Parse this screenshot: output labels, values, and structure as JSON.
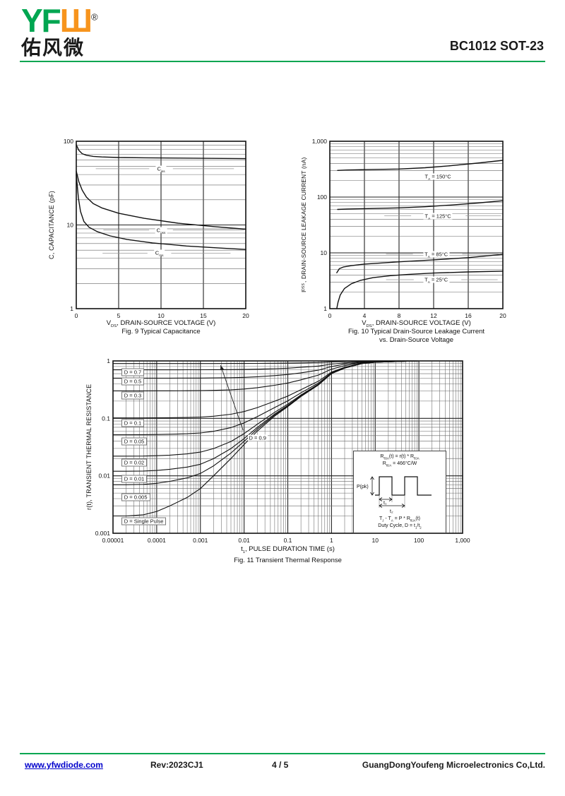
{
  "header": {
    "logo_green": "YF",
    "logo_orange": "Ш",
    "logo_registered": "®",
    "logo_cn": "佑风微",
    "part_number": "BC1012  SOT-23"
  },
  "footer": {
    "website": "www.yfwdiode.com",
    "revision": "Rev:2023CJ1",
    "page": "4 / 5",
    "company": "GuangDongYoufeng Microelectronics Co,Ltd."
  },
  "colors": {
    "brand_green": "#00A651",
    "logo_orange": "#F7941D",
    "link_blue": "#0000CC",
    "curve_black": "#111111"
  },
  "chart_data": [
    {
      "id": "fig9",
      "type": "line",
      "title_lines": [
        "Fig. 9 Typical Capacitance"
      ],
      "xlabel": "V~DS~, DRAIN-SOURCE VOLTAGE (V)",
      "ylabel": "C, CAPACITANCE (pF)",
      "x": {
        "scale": "linear",
        "min": 0,
        "max": 20,
        "ticks": [
          [
            0,
            "0"
          ],
          [
            5,
            "5"
          ],
          [
            10,
            "10"
          ],
          [
            15,
            "15"
          ],
          [
            20,
            "20"
          ]
        ]
      },
      "y": {
        "scale": "log",
        "min": 1,
        "max": 100,
        "ticks": [
          [
            100,
            "100"
          ],
          [
            10,
            "10"
          ],
          [
            1,
            "1"
          ]
        ]
      },
      "series": [
        {
          "name": "Ciss",
          "x": [
            0,
            0.3,
            0.7,
            1.2,
            2,
            3,
            5,
            8,
            12,
            16,
            20
          ],
          "y": [
            91,
            78,
            71,
            68,
            66,
            65,
            64,
            63.5,
            63,
            62.5,
            62
          ]
        },
        {
          "name": "Coss",
          "x": [
            0,
            0.3,
            0.7,
            1.2,
            2,
            3,
            5,
            8,
            12,
            16,
            20
          ],
          "y": [
            44,
            33,
            26,
            21.5,
            18,
            16,
            13.8,
            12,
            10.5,
            9.6,
            8.9
          ]
        },
        {
          "name": "Crss",
          "x": [
            0,
            0.25,
            0.5,
            0.9,
            1.5,
            2.5,
            4,
            6,
            9,
            13,
            17,
            20
          ],
          "y": [
            40,
            21,
            14.5,
            11,
            9.4,
            8.3,
            7.4,
            6.7,
            6.1,
            5.6,
            5.3,
            5.1
          ]
        }
      ],
      "labels": [
        {
          "text": "C~iss~",
          "x": 10,
          "y": 47,
          "lines": [
            [
              2.3,
              8.6
            ],
            [
              11.4,
              18.6
            ]
          ]
        },
        {
          "text": "C~oss~",
          "x": 10,
          "y": 8.7,
          "lines": [
            [
              3.2,
              8.6
            ],
            [
              11.4,
              19.8
            ]
          ]
        },
        {
          "text": "C~rss~",
          "x": 9.8,
          "y": 4.6,
          "lines": [
            [
              3.1,
              8.4
            ],
            [
              11.2,
              18.2
            ]
          ]
        }
      ]
    },
    {
      "id": "fig10",
      "type": "line",
      "title_lines": [
        "Fig. 10 Typical Drain-Source Leakage Current",
        "vs. Drain-Source Voltage"
      ],
      "xlabel": "V~DS~, DRAIN-SOURCE VOLTAGE (V)",
      "ylabel": "I~DSS~, DRAIN-SOURCE LEAKAGE CURRENT (nA)",
      "x": {
        "scale": "linear",
        "min": 0,
        "max": 20,
        "ticks": [
          [
            0,
            "0"
          ],
          [
            4,
            "4"
          ],
          [
            8,
            "8"
          ],
          [
            12,
            "12"
          ],
          [
            16,
            "16"
          ],
          [
            20,
            "20"
          ]
        ]
      },
      "y": {
        "scale": "log",
        "min": 1,
        "max": 1000,
        "ticks": [
          [
            1000,
            "1,000"
          ],
          [
            100,
            "100"
          ],
          [
            10,
            "10"
          ],
          [
            1,
            "1"
          ]
        ]
      },
      "series": [
        {
          "name": "TA=150C",
          "x": [
            0.9,
            2,
            4,
            8,
            11,
            14,
            17,
            20
          ],
          "y": [
            300,
            305,
            310,
            318,
            335,
            365,
            405,
            455
          ]
        },
        {
          "name": "TA=125C",
          "x": [
            0.9,
            2,
            4,
            8,
            11,
            14,
            17,
            20
          ],
          "y": [
            60,
            61,
            62,
            64,
            67,
            72,
            78,
            86
          ]
        },
        {
          "name": "TA=85C",
          "x": [
            0.8,
            1.1,
            1.6,
            2.5,
            4,
            6,
            8,
            12,
            16,
            20
          ],
          "y": [
            4.4,
            5.2,
            5.6,
            5.9,
            6.3,
            6.6,
            6.9,
            7.5,
            8.2,
            9.4
          ]
        },
        {
          "name": "TA=25C",
          "x": [
            0.8,
            0.95,
            1.2,
            1.7,
            2.5,
            3.5,
            5,
            7,
            9,
            12,
            16,
            20
          ],
          "y": [
            1.0,
            1.3,
            1.75,
            2.3,
            2.8,
            3.2,
            3.6,
            3.9,
            4.1,
            4.35,
            4.55,
            4.7
          ]
        }
      ],
      "labels": [
        {
          "text": "T~A~ = 150°C",
          "x": 12.5,
          "y": 230
        },
        {
          "text": "T~A~ = 125°C",
          "x": 12.5,
          "y": 46,
          "lines": [
            [
              6.3,
              9.4
            ],
            [
              15.7,
              19.8
            ]
          ]
        },
        {
          "text": "T~A~ = 85°C",
          "x": 12.3,
          "y": 9.5,
          "lines": [
            [
              6.5,
              9.6
            ],
            [
              15.3,
              19.5
            ]
          ]
        },
        {
          "text": "T~A~ = 25°C",
          "x": 12.3,
          "y": 3.3,
          "lines": [
            [
              6.5,
              9.7
            ],
            [
              15.2,
              19.4
            ]
          ]
        }
      ]
    },
    {
      "id": "fig11",
      "type": "line",
      "title_lines": [
        "Fig. 11 Transient Thermal Response"
      ],
      "xlabel": "t~1~, PULSE DURATION TIME (s)",
      "ylabel": "r(t), TRANSIENT THERMAL RESISTANCE",
      "x": {
        "scale": "log",
        "min": 1e-05,
        "max": 1000,
        "ticks": [
          [
            1e-05,
            "0.00001"
          ],
          [
            0.0001,
            "0.0001"
          ],
          [
            0.001,
            "0.001"
          ],
          [
            0.01,
            "0.01"
          ],
          [
            0.1,
            "0.1"
          ],
          [
            1,
            "1"
          ],
          [
            10,
            "10"
          ],
          [
            100,
            "100"
          ],
          [
            1000,
            "1,000"
          ]
        ]
      },
      "y": {
        "scale": "log",
        "min": 0.001,
        "max": 1,
        "ticks": [
          [
            1,
            "1"
          ],
          [
            0.1,
            "0.1"
          ],
          [
            0.01,
            "0.01"
          ],
          [
            0.001,
            "0.001"
          ]
        ]
      },
      "t": [
        1e-05,
        2e-05,
        5e-05,
        0.0001,
        0.0002,
        0.0005,
        0.001,
        0.002,
        0.005,
        0.01,
        0.02,
        0.05,
        0.1,
        0.2,
        0.5,
        1,
        2,
        5,
        10,
        100,
        1000
      ],
      "series": [
        {
          "name": "D=0.9",
          "r": [
            0.9002,
            0.9002,
            0.9002,
            0.9002,
            0.9003,
            0.9004,
            0.9006,
            0.901,
            0.902,
            0.9035,
            0.906,
            0.911,
            0.916,
            0.924,
            0.938,
            0.96,
            0.975,
            0.99,
            0.995,
            1,
            1
          ]
        },
        {
          "name": "D=0.7",
          "r": [
            0.7006,
            0.7006,
            0.7006,
            0.7007,
            0.7009,
            0.7013,
            0.7018,
            0.703,
            0.706,
            0.7105,
            0.718,
            0.733,
            0.748,
            0.772,
            0.814,
            0.88,
            0.925,
            0.97,
            0.985,
            1,
            1
          ]
        },
        {
          "name": "D=0.5",
          "r": [
            0.501,
            0.501,
            0.5011,
            0.5012,
            0.5015,
            0.5021,
            0.503,
            0.505,
            0.51,
            0.5175,
            0.53,
            0.555,
            0.58,
            0.62,
            0.69,
            0.8,
            0.875,
            0.95,
            0.975,
            1,
            1
          ]
        },
        {
          "name": "D=0.3",
          "r": [
            0.3014,
            0.3014,
            0.3015,
            0.3017,
            0.3021,
            0.3029,
            0.3042,
            0.307,
            0.314,
            0.3245,
            0.342,
            0.377,
            0.412,
            0.468,
            0.566,
            0.72,
            0.825,
            0.93,
            0.965,
            1,
            1
          ]
        },
        {
          "name": "D=0.1",
          "r": [
            0.1018,
            0.1018,
            0.1019,
            0.1022,
            0.1027,
            0.1038,
            0.1054,
            0.109,
            0.118,
            0.1315,
            0.154,
            0.199,
            0.244,
            0.316,
            0.442,
            0.64,
            0.775,
            0.91,
            0.955,
            1,
            1
          ]
        },
        {
          "name": "D=0.05",
          "r": [
            0.0519,
            0.0519,
            0.052,
            0.0523,
            0.0529,
            0.054,
            0.0557,
            0.0595,
            0.069,
            0.0833,
            0.107,
            0.1545,
            0.202,
            0.278,
            0.411,
            0.62,
            0.7625,
            0.905,
            0.9525,
            1,
            1
          ]
        },
        {
          "name": "D=0.02",
          "r": [
            0.022,
            0.022,
            0.0221,
            0.0224,
            0.0229,
            0.0241,
            0.0259,
            0.0298,
            0.0396,
            0.0543,
            0.0788,
            0.1278,
            0.1768,
            0.2552,
            0.3924,
            0.608,
            0.755,
            0.902,
            0.951,
            1,
            1
          ]
        },
        {
          "name": "D=0.01",
          "r": [
            0.012,
            0.012,
            0.0121,
            0.0124,
            0.013,
            0.0142,
            0.0159,
            0.0199,
            0.0298,
            0.0446,
            0.0694,
            0.1189,
            0.1684,
            0.2476,
            0.3862,
            0.604,
            0.7525,
            0.901,
            0.9505,
            1,
            1
          ]
        },
        {
          "name": "D=0.005",
          "r": [
            0.007,
            0.007,
            0.0071,
            0.0074,
            0.008,
            0.0092,
            0.011,
            0.0149,
            0.0249,
            0.0398,
            0.0647,
            0.1144,
            0.1642,
            0.2438,
            0.3831,
            0.602,
            0.7513,
            0.9005,
            0.9503,
            1,
            1
          ]
        },
        {
          "name": "Single Pulse",
          "r": [
            0.002,
            0.002,
            0.0021,
            0.0024,
            0.003,
            0.0042,
            0.006,
            0.01,
            0.02,
            0.035,
            0.06,
            0.11,
            0.16,
            0.24,
            0.38,
            0.6,
            0.75,
            0.9,
            0.95,
            1,
            1
          ]
        }
      ],
      "labels": [
        {
          "text": "D = 0.7",
          "x": 1.55e-05,
          "y": 0.63,
          "anchor": "left",
          "boxed": true
        },
        {
          "text": "D = 0.5",
          "x": 1.55e-05,
          "y": 0.44,
          "anchor": "left",
          "boxed": true
        },
        {
          "text": "D = 0.3",
          "x": 1.55e-05,
          "y": 0.25,
          "anchor": "left",
          "boxed": true
        },
        {
          "text": "D = 0.1",
          "x": 1.55e-05,
          "y": 0.082,
          "anchor": "left",
          "boxed": true
        },
        {
          "text": "D = 0.05",
          "x": 1.55e-05,
          "y": 0.04,
          "anchor": "left",
          "boxed": true
        },
        {
          "text": "D = 0.02",
          "x": 1.55e-05,
          "y": 0.017,
          "anchor": "left",
          "boxed": true
        },
        {
          "text": "D = 0.01",
          "x": 1.55e-05,
          "y": 0.0088,
          "anchor": "left",
          "boxed": true
        },
        {
          "text": "D = 0.005",
          "x": 1.55e-05,
          "y": 0.0042,
          "anchor": "left",
          "boxed": true
        },
        {
          "text": "D = Single Pulse",
          "x": 1.55e-05,
          "y": 0.0016,
          "anchor": "left",
          "boxed": true
        },
        {
          "text": "D = 0.9",
          "x": 0.012,
          "y": 0.046,
          "anchor": "left"
        }
      ],
      "arrows": [
        {
          "from": [
            0.0095,
            0.062
          ],
          "to": [
            0.0029,
            0.84
          ]
        }
      ],
      "inset": {
        "rtheta_eq": "R~θJA~(t) = r(t) * R~θJA~",
        "rtheta_val": "R~θJA~ = 466°C/W",
        "ppk_label": "P(pk)",
        "t1_label": "t₁",
        "t2_label": "t₂",
        "tj_eq": "T~J~ - T~A~ = P * R~θJA~(t)",
        "duty_eq": "Duty Cycle, D = t~1~/t~2~"
      }
    }
  ]
}
